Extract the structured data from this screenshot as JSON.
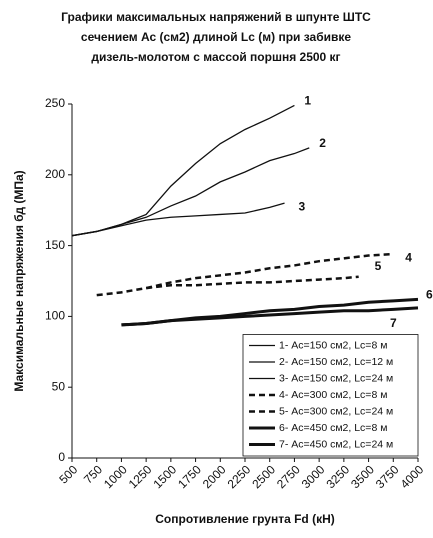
{
  "chart_data": {
    "type": "line",
    "title": [
      "Графики максимальных напряжений в шпунте  ШТС",
      "сечением Ас (см2)  длиной Lc (м) при забивке",
      "дизель-молотом с массой поршня 2500 кг"
    ],
    "x_label": "Сопротивление грунта Fd (кН)",
    "y_label": "Максимальные напряжения бд  (МПа)",
    "xlim": [
      500,
      4000
    ],
    "xticks": [
      500,
      750,
      1000,
      1250,
      1500,
      1750,
      2000,
      2250,
      2500,
      2750,
      3000,
      3250,
      3500,
      3750,
      4000
    ],
    "ylim": [
      0,
      250
    ],
    "yticks": [
      0,
      50,
      100,
      150,
      200,
      250
    ],
    "grid": false,
    "legend": "lower right",
    "series": [
      {
        "name": "1- Ас=150 см2, Lc=8 м",
        "label": "1",
        "color": "#111",
        "style": "solid",
        "width": 1.3,
        "x": [
          500,
          750,
          1000,
          1250,
          1500,
          1750,
          2000,
          2250,
          2500,
          2750
        ],
        "values": [
          157,
          160,
          165,
          172,
          192,
          208,
          222,
          232,
          240,
          249
        ]
      },
      {
        "name": "2- Ас=150 см2, Lc=12 м",
        "label": "2",
        "color": "#111",
        "style": "solid",
        "width": 1.3,
        "x": [
          500,
          750,
          1000,
          1250,
          1500,
          1750,
          2000,
          2250,
          2500,
          2750,
          2900
        ],
        "values": [
          157,
          160,
          165,
          170,
          178,
          185,
          195,
          202,
          210,
          215,
          219
        ]
      },
      {
        "name": "3- Ас=150 см2, Lc=24 м",
        "label": "3",
        "color": "#111",
        "style": "solid",
        "width": 1.3,
        "x": [
          500,
          750,
          1000,
          1250,
          1500,
          1750,
          2000,
          2250,
          2500,
          2650
        ],
        "values": [
          157,
          160,
          164,
          168,
          170,
          171,
          172,
          173,
          177,
          180
        ]
      },
      {
        "name": "4- Ас=300 см2, Lc=8 м",
        "label": "4",
        "color": "#111",
        "style": "dashed",
        "width": 2.5,
        "x": [
          750,
          1000,
          1250,
          1500,
          1750,
          2000,
          2250,
          2500,
          2750,
          3000,
          3250,
          3500,
          3750
        ],
        "values": [
          115,
          117,
          120,
          124,
          127,
          129,
          131,
          134,
          136,
          139,
          141,
          143,
          144
        ]
      },
      {
        "name": "5- Ас=300 см2, Lc=24 м",
        "label": "5",
        "color": "#111",
        "style": "dashed",
        "width": 2.5,
        "x": [
          1250,
          1500,
          1750,
          2000,
          2250,
          2500,
          2750,
          3000,
          3250,
          3400
        ],
        "values": [
          120,
          122,
          122,
          123,
          124,
          124,
          125,
          126,
          127,
          128
        ]
      },
      {
        "name": "6- Ас=450 см2, Lc=8 м",
        "label": "6",
        "color": "#111",
        "style": "solid",
        "width": 3,
        "x": [
          1000,
          1250,
          1500,
          1750,
          2000,
          2250,
          2500,
          2750,
          3000,
          3250,
          3500,
          3750,
          4000
        ],
        "values": [
          94,
          95,
          97,
          99,
          100,
          102,
          104,
          105,
          107,
          108,
          110,
          111,
          112
        ]
      },
      {
        "name": "7- Ас=450 см2, Lc=24 м",
        "label": "7",
        "color": "#111",
        "style": "solid",
        "width": 3,
        "x": [
          1000,
          1250,
          1500,
          1750,
          2000,
          2250,
          2500,
          2750,
          3000,
          3250,
          3500,
          3750,
          4000
        ],
        "values": [
          94,
          95,
          97,
          98,
          99,
          100,
          101,
          102,
          103,
          104,
          104,
          105,
          106
        ]
      }
    ]
  }
}
